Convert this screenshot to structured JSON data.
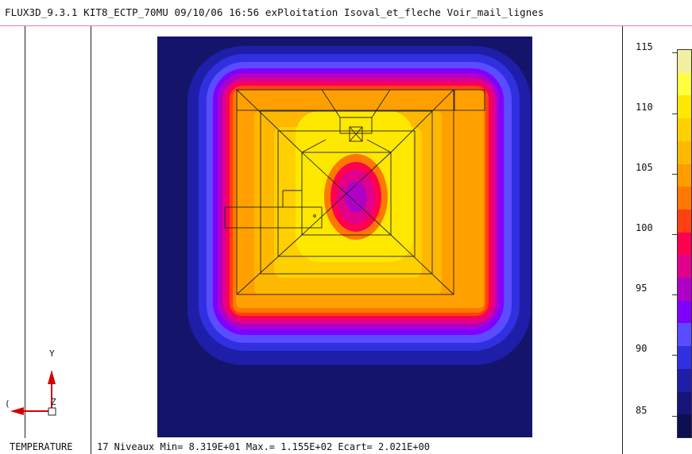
{
  "header": {
    "title": "FLUX3D_9.3.1 KIT8_ECTP_70MU 09/10/06 16:56 exPloitation Isoval_et_fleche Voir_mail_lignes"
  },
  "axes": {
    "y_label": "Y",
    "x_label": "(",
    "z_label": "Z"
  },
  "colorbar": {
    "labels": [
      "115",
      "110",
      "105",
      "100",
      "95",
      "90",
      "85"
    ],
    "colors": [
      "#f0f0a0",
      "#ffff40",
      "#ffe800",
      "#ffd000",
      "#ffb800",
      "#ff9c00",
      "#ff7800",
      "#ff4010",
      "#ff0050",
      "#e0008c",
      "#b000c8",
      "#8000ff",
      "#5a4cff",
      "#3030e0",
      "#1e1ea8",
      "#16167a",
      "#0e0e52"
    ]
  },
  "footer": {
    "variable": "TEMPERATURE",
    "stats": "17 Niveaux Min= 8.319E+01 Max.= 1.155E+02 Ecart= 2.021E+00"
  }
}
